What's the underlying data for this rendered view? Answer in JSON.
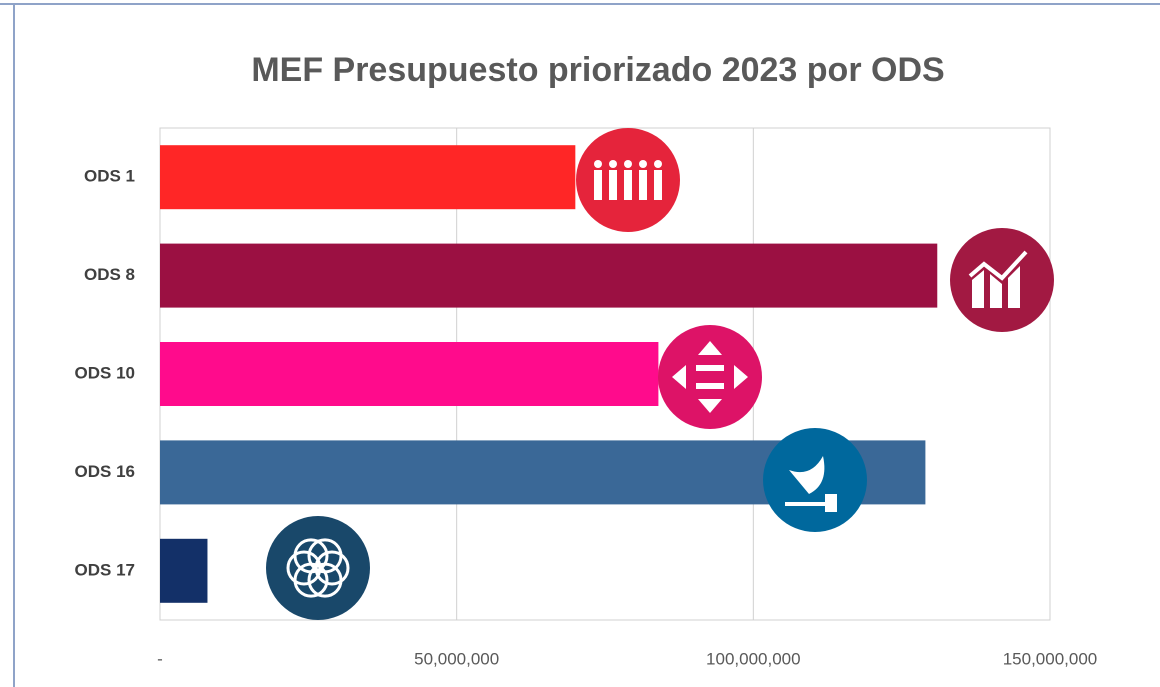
{
  "chart_data": {
    "type": "bar",
    "orientation": "horizontal",
    "title": "MEF Presupuesto priorizado 2023 por ODS",
    "categories": [
      "ODS 1",
      "ODS 8",
      "ODS 10",
      "ODS 16",
      "ODS 17"
    ],
    "values": [
      70000000,
      131000000,
      84000000,
      129000000,
      8000000
    ],
    "colors": [
      "#ff2626",
      "#9b1042",
      "#ff0b8c",
      "#3a6897",
      "#133068"
    ],
    "xlim": [
      0,
      150000000
    ],
    "xticks": [
      {
        "value": 0,
        "label": "-"
      },
      {
        "value": 50000000,
        "label": "50,000,000"
      },
      {
        "value": 100000000,
        "label": "100,000,000"
      },
      {
        "value": 150000000,
        "label": "150,000,000"
      }
    ],
    "grid": true
  }
}
